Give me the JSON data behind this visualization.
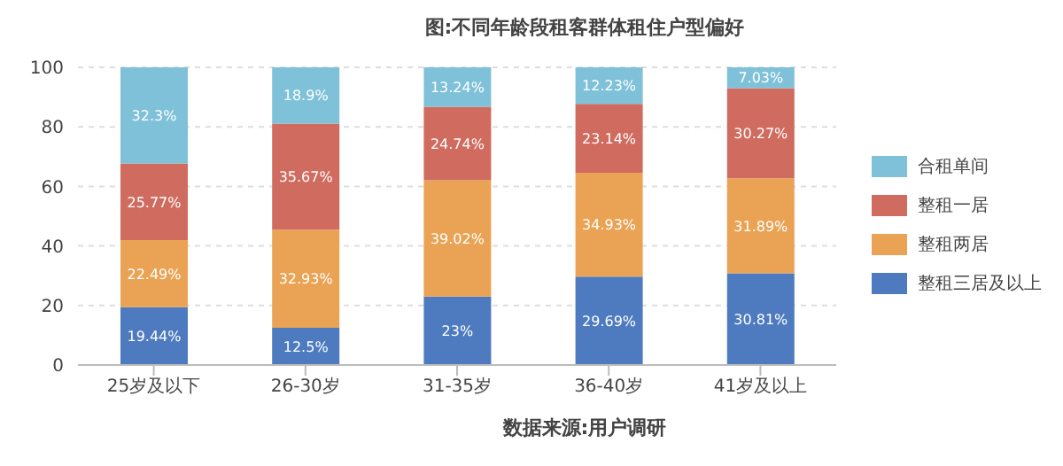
{
  "chart_data": {
    "type": "bar",
    "title": "图:不同年龄段租客群体租住户型偏好",
    "categories": [
      "25岁及以下",
      "26-30岁",
      "31-35岁",
      "36-40岁",
      "41岁及以上"
    ],
    "stacked": true,
    "series": [
      {
        "name": "整租三居及以上",
        "color": "#4e7bbf",
        "values": [
          19.44,
          12.5,
          23,
          29.69,
          30.81
        ],
        "value_labels": [
          "19.44%",
          "12.5%",
          "23%",
          "29.69%",
          "30.81%"
        ]
      },
      {
        "name": "整租两居",
        "color": "#eaa354",
        "values": [
          22.49,
          32.93,
          39.02,
          34.93,
          31.89
        ],
        "value_labels": [
          "22.49%",
          "32.93%",
          "39.02%",
          "34.93%",
          "31.89%"
        ]
      },
      {
        "name": "整租一居",
        "color": "#d06b5f",
        "values": [
          25.77,
          35.67,
          24.74,
          23.14,
          30.27
        ],
        "value_labels": [
          "25.77%",
          "35.67%",
          "24.74%",
          "23.14%",
          "30.27%"
        ]
      },
      {
        "name": "合租单间",
        "color": "#7fc1d8",
        "values": [
          32.3,
          18.9,
          13.24,
          12.23,
          7.03
        ],
        "value_labels": [
          "32.3%",
          "18.9%",
          "13.24%",
          "12.23%",
          "7.03%"
        ]
      }
    ],
    "ylim": [
      0,
      100
    ],
    "yticks": [
      0,
      20,
      40,
      60,
      80,
      100
    ],
    "grid": "y",
    "legend": "right",
    "annotations": [
      "数据来源:用户调研"
    ]
  }
}
